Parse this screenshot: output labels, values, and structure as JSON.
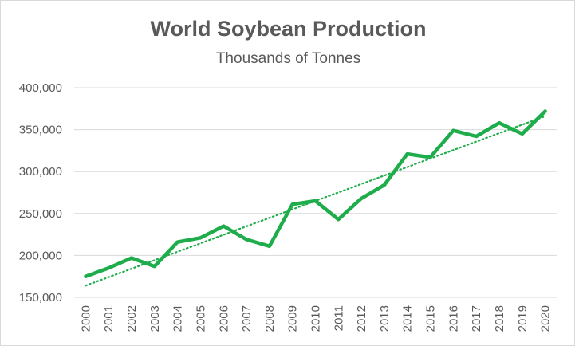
{
  "chart_data": {
    "type": "line",
    "title": "World Soybean Production",
    "subtitle": "Thousands of Tonnes",
    "xlabel": "",
    "ylabel": "",
    "categories": [
      "2000",
      "2001",
      "2002",
      "2003",
      "2004",
      "2005",
      "2006",
      "2007",
      "2008",
      "2009",
      "2010",
      "2011",
      "2012",
      "2013",
      "2014",
      "2015",
      "2016",
      "2017",
      "2018",
      "2019",
      "2020"
    ],
    "series": [
      {
        "values": [
          175000,
          185000,
          197000,
          187000,
          216000,
          221000,
          235000,
          219000,
          211000,
          261000,
          265000,
          243000,
          268000,
          284000,
          321000,
          317000,
          349000,
          342000,
          358000,
          345000,
          372000
        ]
      }
    ],
    "trendline": {
      "type": "linear",
      "start": 164000,
      "end": 366000
    },
    "ylim": [
      150000,
      400000
    ],
    "ytick_values": [
      150000,
      200000,
      250000,
      300000,
      350000,
      400000
    ],
    "ytick_labels": [
      "150,000",
      "200,000",
      "250,000",
      "300,000",
      "350,000",
      "400,000"
    ],
    "grid": true,
    "legend": "none",
    "colors": {
      "line": "#1fad4c",
      "trend": "#1fad4c",
      "grid": "#d9d9d9",
      "text": "#595959"
    }
  }
}
